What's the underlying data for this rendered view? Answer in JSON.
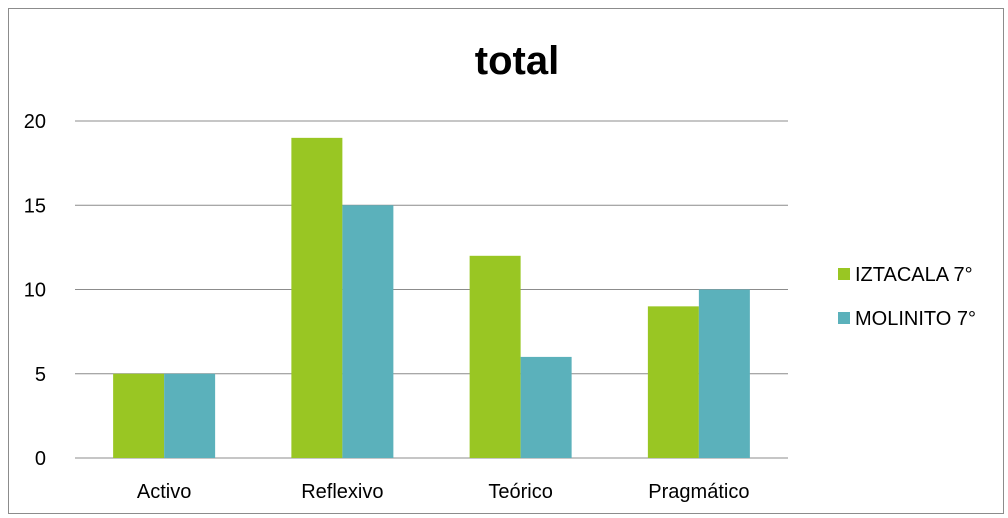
{
  "chart_data": {
    "type": "bar",
    "title": "total",
    "xlabel": "",
    "ylabel": "",
    "categories": [
      "Activo",
      "Reflexivo",
      "Teórico",
      "Pragmático"
    ],
    "series": [
      {
        "name": "IZTACALA 7°",
        "values": [
          5,
          19,
          12,
          9
        ],
        "color": "#99c623"
      },
      {
        "name": "MOLINITO 7°",
        "values": [
          5,
          15,
          6,
          10
        ],
        "color": "#5bb1bb"
      }
    ],
    "ylim": [
      0,
      20
    ],
    "yticks": [
      "0",
      "5",
      "10",
      "15",
      "20"
    ],
    "grid": true,
    "legend": "right"
  }
}
